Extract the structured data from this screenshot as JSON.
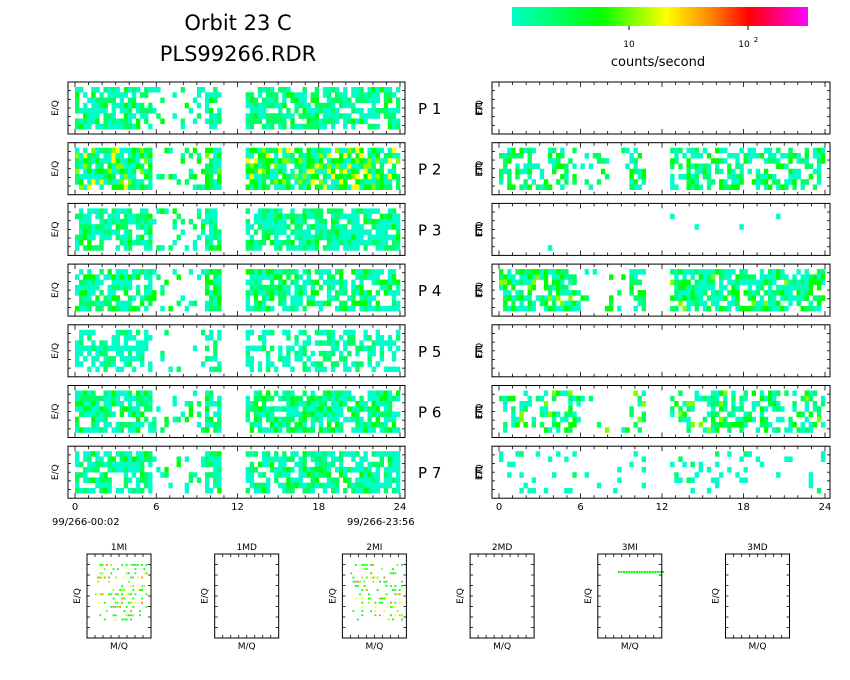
{
  "header": {
    "title_line1": "Orbit 23 C",
    "title_line2": "PLS99266.RDR"
  },
  "colorbar": {
    "colors": [
      "#00ffc8",
      "#00ff00",
      "#ffff00",
      "#ff8000",
      "#ff0000",
      "#ff00ff"
    ],
    "tick1_base": "10",
    "tick2_base": "10",
    "tick2_exp": "2",
    "label": "counts/second"
  },
  "chart_data": {
    "type": "heatmap",
    "ylabel": "E/Q",
    "x_ticks": [
      "0",
      "6",
      "12",
      "18",
      "24"
    ],
    "xlim": [
      0,
      24
    ],
    "start_label": "99/266-00:02",
    "end_label": "99/266-23:56",
    "gap_hours": [
      10.9,
      12.7
    ],
    "panels": [
      {
        "label": "P 1",
        "left": {
          "coverage": 0.72,
          "intensity": 0.35
        },
        "right": {
          "coverage": 0.0,
          "intensity": 0.0
        }
      },
      {
        "label": "P 2",
        "left": {
          "coverage": 0.85,
          "intensity": 0.6
        },
        "right": {
          "coverage": 0.55,
          "intensity": 0.45
        }
      },
      {
        "label": "P 3",
        "left": {
          "coverage": 0.75,
          "intensity": 0.35
        },
        "right": {
          "coverage": 0.01,
          "intensity": 0.1
        }
      },
      {
        "label": "P 4",
        "left": {
          "coverage": 0.75,
          "intensity": 0.45
        },
        "right": {
          "coverage": 0.7,
          "intensity": 0.5
        }
      },
      {
        "label": "P 5",
        "left": {
          "coverage": 0.55,
          "intensity": 0.25
        },
        "right": {
          "coverage": 0.0,
          "intensity": 0.0
        }
      },
      {
        "label": "P 6",
        "left": {
          "coverage": 0.75,
          "intensity": 0.4
        },
        "right": {
          "coverage": 0.45,
          "intensity": 0.55
        }
      },
      {
        "label": "P 7",
        "left": {
          "coverage": 0.72,
          "intensity": 0.35
        },
        "right": {
          "coverage": 0.15,
          "intensity": 0.2
        }
      }
    ],
    "e_label": "E",
    "small_plots": {
      "xlabel": "M/Q",
      "ylabel": "E/Q",
      "items": [
        {
          "title": "1MI",
          "density": 0.3
        },
        {
          "title": "1MD",
          "density": 0.0
        },
        {
          "title": "2MI",
          "density": 0.3
        },
        {
          "title": "2MD",
          "density": 0.0
        },
        {
          "title": "3MI",
          "density": 0.05
        },
        {
          "title": "3MD",
          "density": 0.0
        }
      ]
    }
  }
}
